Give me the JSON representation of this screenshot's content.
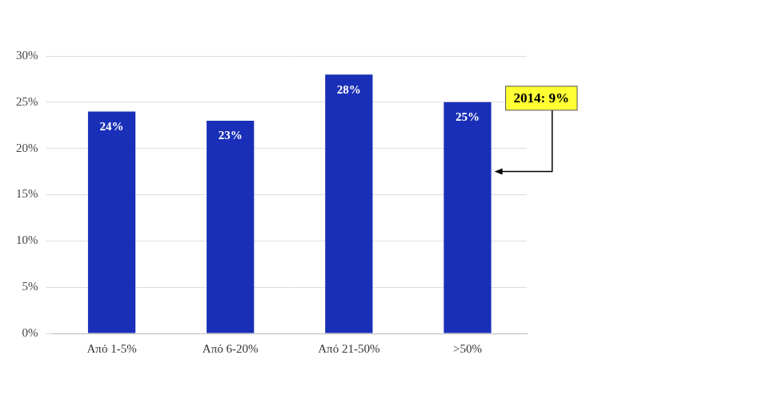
{
  "chart_data": {
    "type": "bar",
    "categories": [
      "Από 1-5%",
      "Από 6-20%",
      "Από 21-50%",
      ">50%"
    ],
    "values": [
      24,
      23,
      28,
      25
    ],
    "value_labels": [
      "24%",
      "23%",
      "28%",
      "25%"
    ],
    "color": "#1a2fb8",
    "ylim": [
      0,
      30
    ],
    "yticks": [
      {
        "value": 0,
        "label": "0%"
      },
      {
        "value": 5,
        "label": "5%"
      },
      {
        "value": 10,
        "label": "10%"
      },
      {
        "value": 15,
        "label": "15%"
      },
      {
        "value": 20,
        "label": "20%"
      },
      {
        "value": 25,
        "label": "25%"
      },
      {
        "value": 30,
        "label": "30%"
      }
    ],
    "grid": true,
    "data_labels": true,
    "annotations": [
      "2014: 9%"
    ]
  }
}
